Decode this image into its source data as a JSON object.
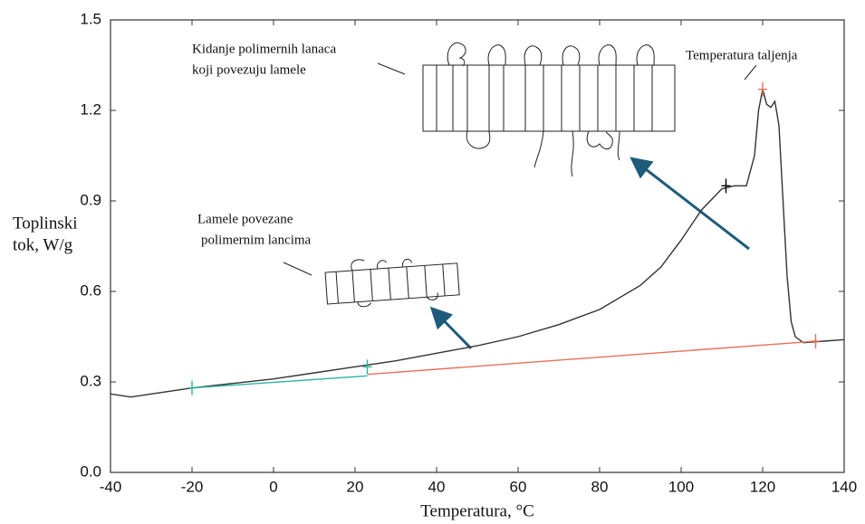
{
  "chart_data": {
    "type": "line",
    "ylabel": [
      "Toplinski",
      "tok, W/g"
    ],
    "xlabel": "Temperatura, °C",
    "annotations": [
      [
        "Kidanje polimernih lanaca",
        "koji povezuju lamele"
      ],
      [
        "Temperatura taljenja"
      ],
      [
        "Lamele povezane",
        "polimernim lancima"
      ]
    ],
    "xlim": [
      -40,
      140
    ],
    "xticks": [
      -40,
      -20,
      0,
      20,
      40,
      60,
      80,
      100,
      120,
      140
    ],
    "ylim": [
      0,
      1.5
    ],
    "yticks": [
      {
        "value": 0,
        "label": "0.0"
      },
      0.3,
      0.6,
      0.9,
      1.2,
      1.5
    ],
    "series": [
      {
        "color": "#333333",
        "x": [
          -40,
          -35,
          -30,
          -20,
          -10,
          0,
          10,
          20,
          30,
          40,
          50,
          60,
          70,
          80,
          90,
          95,
          100,
          105,
          110,
          113,
          116,
          118,
          119,
          120,
          121,
          122,
          123,
          124,
          125,
          126,
          127,
          128,
          130,
          135,
          140
        ],
        "values": [
          0.26,
          0.25,
          0.26,
          0.28,
          0.295,
          0.31,
          0.33,
          0.35,
          0.37,
          0.395,
          0.42,
          0.45,
          0.49,
          0.54,
          0.62,
          0.68,
          0.77,
          0.87,
          0.94,
          0.95,
          0.95,
          1.05,
          1.2,
          1.27,
          1.22,
          1.21,
          1.23,
          1.15,
          0.9,
          0.65,
          0.5,
          0.45,
          0.43,
          0.435,
          0.44
        ]
      },
      {
        "color": "#2bb3a0",
        "x": [
          -20,
          23
        ],
        "values": [
          0.28,
          0.32
        ]
      },
      {
        "color": "#e8705a",
        "x": [
          23,
          133
        ],
        "values": [
          0.325,
          0.435
        ]
      }
    ],
    "markers": [
      {
        "x": -20,
        "y": 0.28,
        "color": "#2bb3a0"
      },
      {
        "x": 23,
        "y": 0.35,
        "color": "#2bb3a0"
      },
      {
        "x": 133,
        "y": 0.435,
        "color": "#e8705a"
      },
      {
        "x": 120,
        "y": 1.27,
        "color": "#e8705a"
      },
      {
        "x": 111,
        "y": 0.95,
        "color": "#000000"
      }
    ]
  }
}
